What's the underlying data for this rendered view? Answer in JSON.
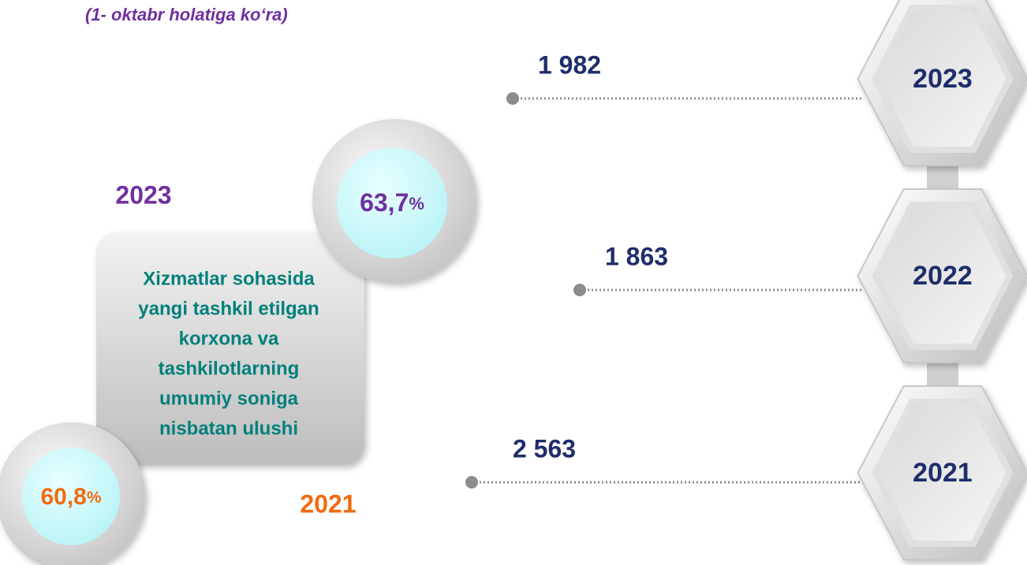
{
  "subtitle": "(1- oktabr holatiga ko‘ra)",
  "share": {
    "description": [
      "Xizmatlar sohasida",
      "yangi tashkil etilgan",
      "korxona va",
      "tashkilotlarning",
      "umumiy soniga",
      "nisbatan ulushi"
    ],
    "items": [
      {
        "year": "2023",
        "value": "63,7",
        "unit": "%"
      },
      {
        "year": "2021",
        "value": "60,8",
        "unit": "%"
      }
    ]
  },
  "timeline": [
    {
      "year": "2023",
      "value": "1 982"
    },
    {
      "year": "2022",
      "value": "1 863"
    },
    {
      "year": "2021",
      "value": "2 563"
    }
  ]
}
